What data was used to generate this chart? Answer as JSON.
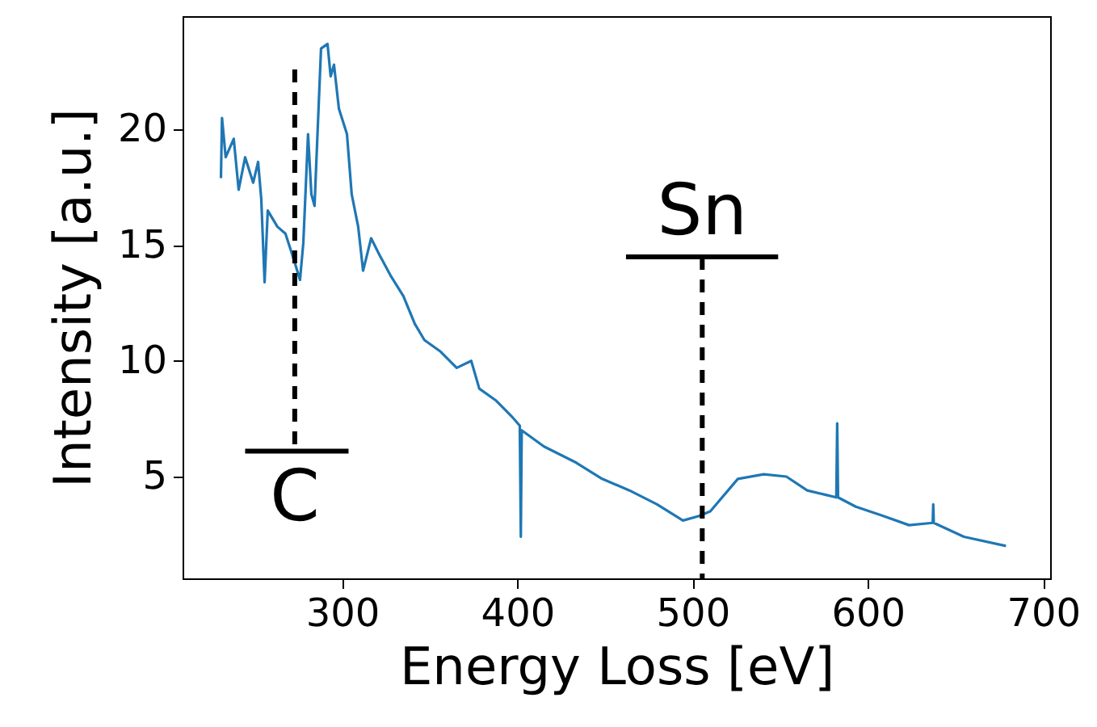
{
  "chart_data": {
    "type": "line",
    "xlabel": "Energy Loss [eV]",
    "ylabel": "Intensity [a.u.]",
    "xlim": [
      209,
      704
    ],
    "ylim": [
      0.6,
      24.9
    ],
    "xticks": [
      300,
      400,
      500,
      600,
      700
    ],
    "yticks": [
      5,
      10,
      15,
      20
    ],
    "grid": false,
    "series": [
      {
        "color": "#1f77b4",
        "x": [
          230.9,
          231.5,
          233.6,
          238.2,
          241,
          244.7,
          249.3,
          252.1,
          253.9,
          255.8,
          257.6,
          263.1,
          267.7,
          272.4,
          276,
          277.9,
          280.6,
          282.5,
          284.3,
          286.2,
          288,
          291.7,
          293.5,
          295.4,
          298.2,
          302.8,
          305.5,
          309.2,
          312,
          316.6,
          321.2,
          327.6,
          335,
          341.5,
          347,
          356.2,
          365.4,
          373.7,
          378.3,
          387.6,
          396.8,
          401.4,
          402,
          402.5,
          415.2,
          433.6,
          448.4,
          464,
          479.7,
          494.5,
          503.7,
          510.1,
          525.8,
          540.6,
          553.5,
          565.4,
          576.5,
          582,
          582.5,
          583,
          593.1,
          608.8,
          623.5,
          637,
          637.3,
          637.6,
          654.8,
          678.8
        ],
        "values": [
          17.9,
          20.5,
          18.8,
          19.6,
          17.4,
          18.8,
          17.7,
          18.6,
          17.0,
          13.4,
          16.5,
          15.8,
          15.5,
          14.4,
          13.5,
          15.1,
          19.8,
          17.2,
          16.7,
          20.2,
          23.5,
          23.7,
          22.3,
          22.8,
          20.9,
          19.8,
          17.2,
          15.8,
          13.9,
          15.3,
          14.6,
          13.7,
          12.8,
          11.6,
          10.9,
          10.4,
          9.7,
          10.0,
          8.8,
          8.3,
          7.6,
          7.2,
          2.4,
          7.0,
          6.3,
          5.6,
          4.9,
          4.4,
          3.8,
          3.1,
          3.3,
          3.5,
          4.9,
          5.1,
          5.0,
          4.4,
          4.2,
          4.1,
          7.3,
          4.1,
          3.7,
          3.3,
          2.9,
          3.0,
          3.8,
          3.0,
          2.4,
          2.0
        ]
      },
      {
        "color": "#000000",
        "line_style": "dashed",
        "x": [
          273,
          273
        ],
        "values": [
          22.6,
          6.1
        ]
      },
      {
        "color": "#000000",
        "line_style": "solid",
        "x": [
          244.7,
          303.7
        ],
        "values": [
          6.1,
          6.1
        ]
      },
      {
        "color": "#000000",
        "line_style": "dashed",
        "x": [
          505.5,
          505.5
        ],
        "values": [
          14.5,
          0.6
        ]
      },
      {
        "color": "#000000",
        "line_style": "solid",
        "x": [
          462,
          548.8
        ],
        "values": [
          14.5,
          14.5
        ]
      }
    ],
    "annotations": [
      "C",
      "Sn"
    ]
  }
}
